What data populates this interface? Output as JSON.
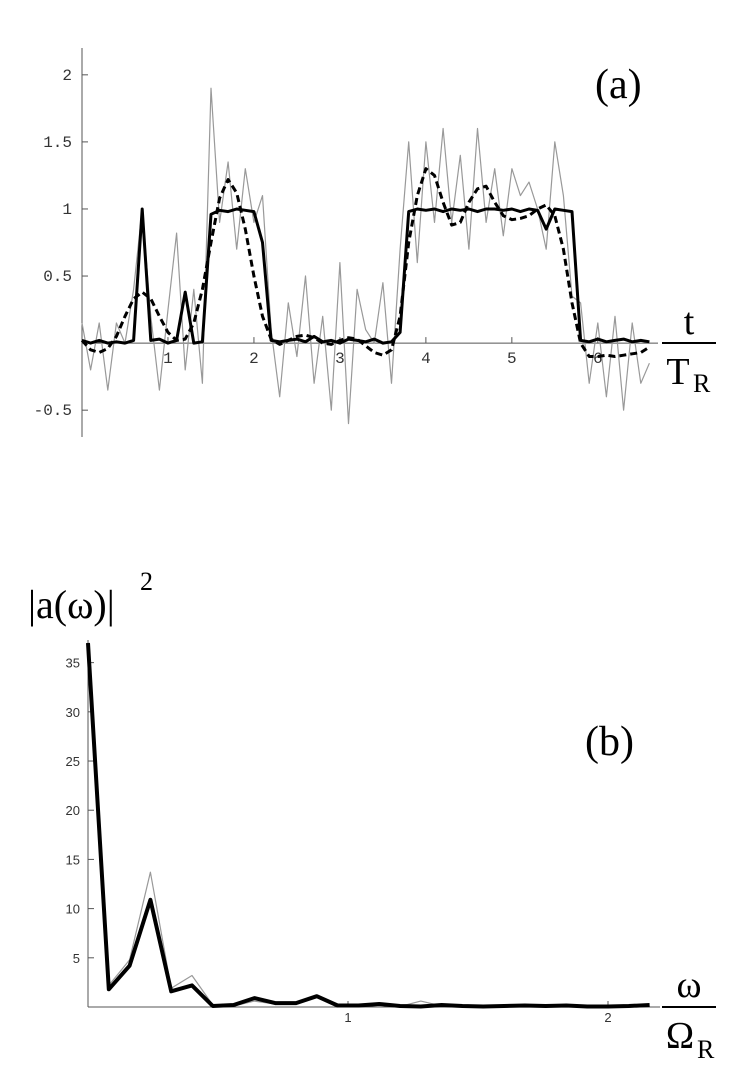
{
  "chart_data": [
    {
      "type": "line",
      "annotation": "(a)",
      "x_label_numerator": "t",
      "x_label_denominator": "T",
      "x_label_subscript": "R",
      "xlim": [
        0,
        6.7
      ],
      "ylim": [
        -0.7,
        2.2
      ],
      "xticks": [
        1,
        2,
        3,
        4,
        5,
        6
      ],
      "yticks": [
        -0.5,
        0.5,
        1,
        1.5,
        2
      ],
      "x": [
        0,
        0.1,
        0.2,
        0.3,
        0.4,
        0.5,
        0.6,
        0.7,
        0.8,
        0.9,
        1,
        1.1,
        1.2,
        1.3,
        1.4,
        1.5,
        1.6,
        1.7,
        1.8,
        1.9,
        2,
        2.1,
        2.2,
        2.3,
        2.4,
        2.5,
        2.6,
        2.7,
        2.8,
        2.9,
        3,
        3.1,
        3.2,
        3.3,
        3.4,
        3.5,
        3.6,
        3.7,
        3.8,
        3.9,
        4,
        4.1,
        4.2,
        4.3,
        4.4,
        4.5,
        4.6,
        4.7,
        4.8,
        4.9,
        5,
        5.1,
        5.2,
        5.3,
        5.4,
        5.5,
        5.6,
        5.7,
        5.8,
        5.9,
        6,
        6.1,
        6.2,
        6.3,
        6.4,
        6.5,
        6.6
      ],
      "series": [
        {
          "color": "#999999",
          "line_style": "thin",
          "values": [
            0.15,
            -0.2,
            0.15,
            -0.35,
            0.15,
            0,
            0.4,
            1,
            0.2,
            -0.35,
            0.25,
            0.82,
            -0.2,
            0.4,
            -0.3,
            1.9,
            0.9,
            1.35,
            0.7,
            1.3,
            0.9,
            1.1,
            0.1,
            -0.4,
            0.3,
            -0.1,
            0.5,
            -0.3,
            0.2,
            -0.5,
            0.6,
            -0.6,
            0.4,
            0.1,
            0,
            0.45,
            -0.3,
            0.7,
            1.5,
            0.6,
            1.5,
            0.9,
            1.6,
            0.9,
            1.4,
            0.7,
            1.6,
            0.9,
            1.3,
            0.8,
            1.3,
            1.1,
            1.2,
            1,
            0.7,
            1.5,
            1.1,
            0.35,
            0.3,
            -0.3,
            0.15,
            -0.4,
            0.2,
            -0.5,
            0.15,
            -0.3,
            -0.15
          ]
        },
        {
          "color": "#000000",
          "line_style": "solid",
          "values": [
            0.02,
            0,
            0.02,
            0,
            0.01,
            0,
            0.02,
            1,
            0.02,
            0.03,
            0,
            0.02,
            0.38,
            0,
            0.01,
            0.96,
            0.99,
            0.98,
            1,
            0.99,
            0.98,
            0.75,
            0.02,
            0.01,
            0.02,
            0.03,
            0.01,
            0.05,
            0.01,
            0.02,
            0,
            0.03,
            0.02,
            0.01,
            0.03,
            0,
            0.01,
            0.08,
            0.98,
            1,
            0.99,
            1,
            0.98,
            1,
            0.99,
            1,
            0.98,
            1,
            1,
            0.99,
            1,
            0.98,
            1,
            0.99,
            0.85,
            1,
            0.99,
            0.98,
            0.02,
            0.01,
            0.03,
            0.01,
            0.02,
            0.03,
            0.01,
            0.02,
            0.01
          ]
        },
        {
          "color": "#000000",
          "line_style": "dashed",
          "values": [
            0.02,
            -0.05,
            -0.07,
            -0.04,
            0.05,
            0.2,
            0.33,
            0.38,
            0.33,
            0.2,
            0.08,
            0.02,
            0.03,
            0.15,
            0.4,
            0.75,
            1.08,
            1.22,
            1.12,
            0.85,
            0.5,
            0.2,
            0.03,
            -0.01,
            0.02,
            0.05,
            0.06,
            0.04,
            0,
            -0.01,
            0.02,
            0.04,
            0.03,
            -0.02,
            -0.07,
            -0.09,
            -0.05,
            0.2,
            0.75,
            1.1,
            1.3,
            1.25,
            1.05,
            0.88,
            0.9,
            1.05,
            1.15,
            1.17,
            1.05,
            0.95,
            0.92,
            0.93,
            0.95,
            1,
            1.03,
            0.95,
            0.7,
            0.3,
            0,
            -0.1,
            -0.1,
            -0.09,
            -0.1,
            -0.09,
            -0.08,
            -0.07,
            -0.03
          ]
        }
      ]
    },
    {
      "type": "line",
      "annotation": "(b)",
      "y_label": "|a(ω)|",
      "y_label_superscript": "2",
      "x_label_numerator": "ω",
      "x_label_denominator": "Ω",
      "x_label_subscript": "R",
      "xlim": [
        0,
        2.2
      ],
      "ylim": [
        0,
        37.3
      ],
      "xticks": [
        1,
        2
      ],
      "yticks": [
        5,
        10,
        15,
        20,
        25,
        30,
        35
      ],
      "x": [
        0,
        0.08,
        0.16,
        0.24,
        0.32,
        0.4,
        0.48,
        0.56,
        0.64,
        0.72,
        0.8,
        0.88,
        0.96,
        1.04,
        1.12,
        1.2,
        1.28,
        1.36,
        1.44,
        1.52,
        1.6,
        1.68,
        1.76,
        1.84,
        1.92,
        2,
        2.08,
        2.16
      ],
      "series": [
        {
          "color": "#999999",
          "line_style": "thin",
          "values": [
            37,
            2.2,
            4.8,
            13.7,
            1.9,
            3.2,
            0.2,
            0.1,
            0.6,
            0.3,
            0.5,
            1,
            0.2,
            0.1,
            0.2,
            0.05,
            0.6,
            0.1,
            0.05,
            0.1,
            0.1,
            0.2,
            0.05,
            0.1,
            0.1,
            0.05,
            0.1,
            0.1
          ]
        },
        {
          "color": "#000000",
          "line_style": "thick",
          "values": [
            37,
            1.8,
            4.2,
            10.9,
            1.6,
            2.2,
            0.1,
            0.2,
            0.9,
            0.4,
            0.4,
            1.1,
            0.15,
            0.15,
            0.3,
            0.1,
            0.05,
            0.2,
            0.1,
            0.05,
            0.1,
            0.15,
            0.1,
            0.15,
            0.05,
            0.05,
            0.1,
            0.2
          ]
        }
      ]
    }
  ]
}
